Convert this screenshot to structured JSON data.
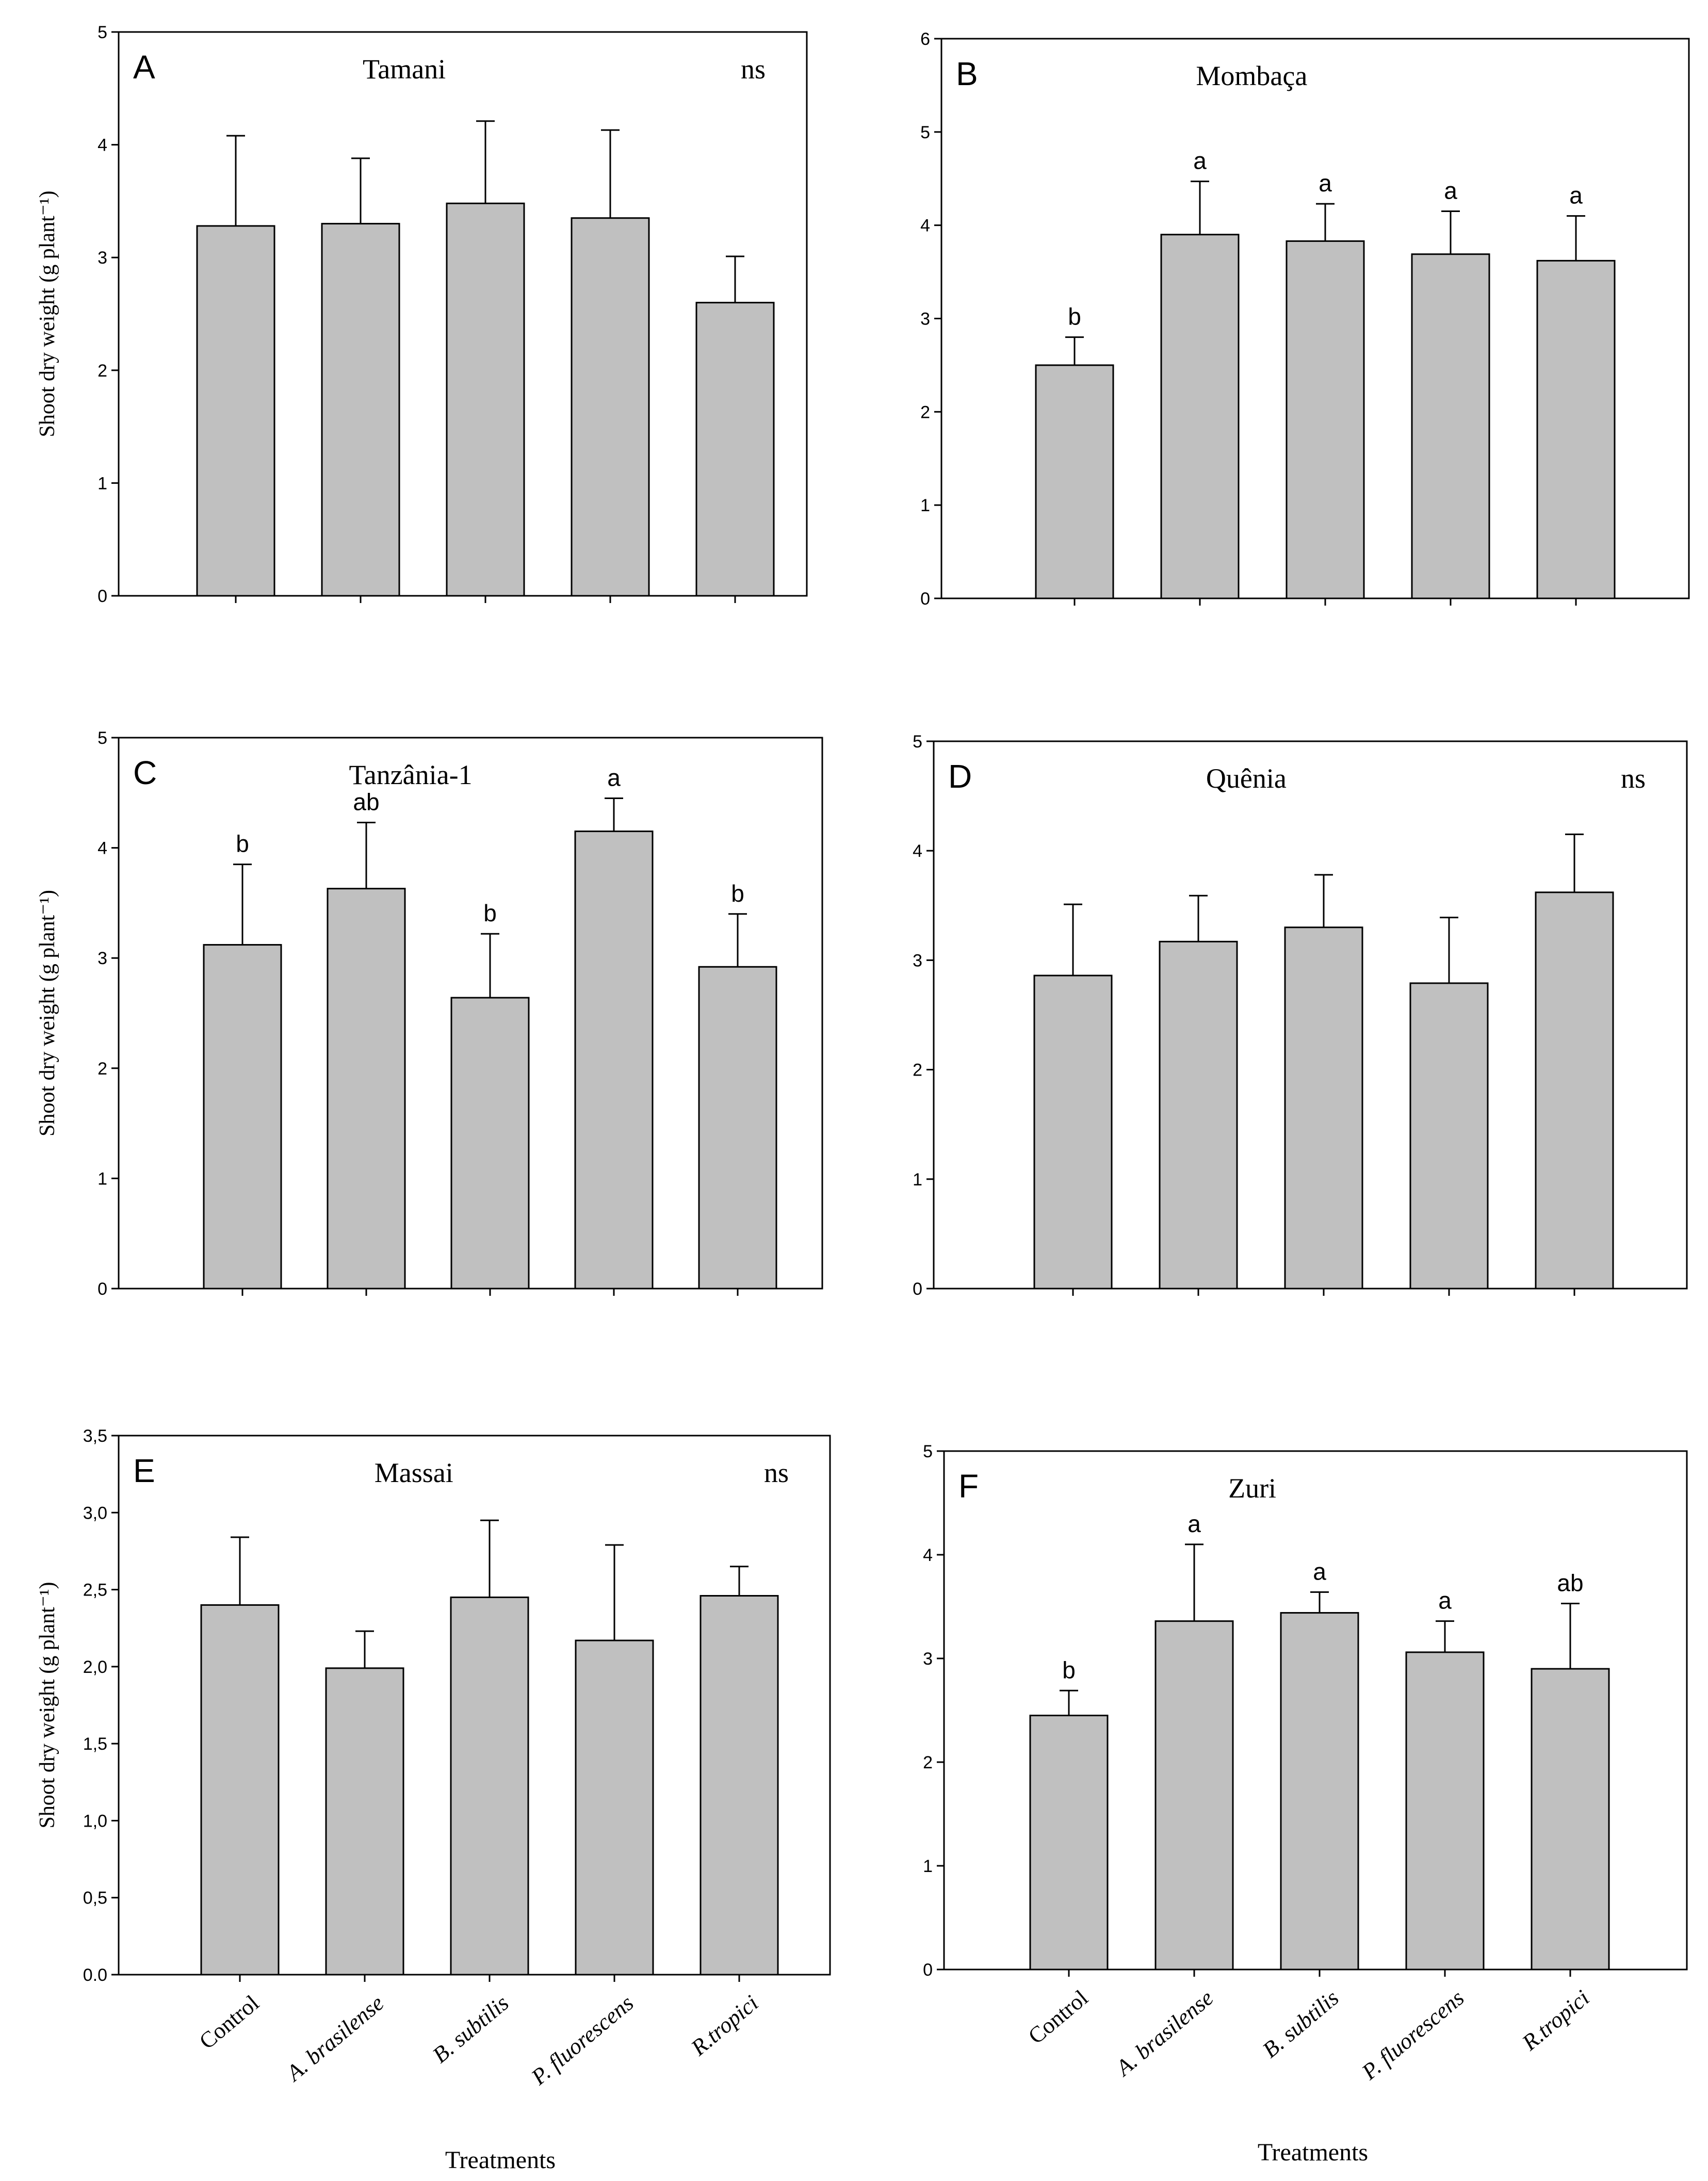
{
  "figure": {
    "xlabel_left": "Treatments",
    "xlabel_right": "Treatments"
  },
  "colors": {
    "bar_fill": "#c0c0c0",
    "stroke": "#000000",
    "background": "#ffffff"
  },
  "chart_data": [
    {
      "type": "bar",
      "panel": "A",
      "title": "Tamani",
      "note": "ns",
      "ylabel": "Shoot dry weight (g plant⁻¹)",
      "xlabel": "",
      "ylim": [
        0,
        5
      ],
      "yticks": [
        "0",
        "1",
        "2",
        "3",
        "4",
        "5"
      ],
      "categories": [
        "Control",
        "A. brasilense",
        "B. subtilis",
        "P. fluorescens",
        "R.tropici"
      ],
      "values": [
        3.28,
        3.3,
        3.48,
        3.35,
        2.6
      ],
      "errors": [
        0.8,
        0.58,
        0.73,
        0.78,
        0.41
      ],
      "letters": [
        "",
        "",
        "",
        "",
        ""
      ]
    },
    {
      "type": "bar",
      "panel": "B",
      "title": "Mombaça",
      "note": "",
      "ylabel": "",
      "xlabel": "",
      "ylim": [
        0,
        6
      ],
      "yticks": [
        "0",
        "1",
        "2",
        "3",
        "4",
        "5",
        "6"
      ],
      "categories": [
        "Control",
        "A. brasilense",
        "B. subtilis",
        "P. fluorescens",
        "R.tropici"
      ],
      "values": [
        2.5,
        3.9,
        3.83,
        3.69,
        3.62
      ],
      "errors": [
        0.3,
        0.57,
        0.4,
        0.46,
        0.48
      ],
      "letters": [
        "b",
        "a",
        "a",
        "a",
        "a"
      ]
    },
    {
      "type": "bar",
      "panel": "C",
      "title": "Tanzânia-1",
      "note": "",
      "ylabel": "Shoot dry weight (g plant⁻¹)",
      "xlabel": "",
      "ylim": [
        0,
        5
      ],
      "yticks": [
        "0",
        "1",
        "2",
        "3",
        "4",
        "5"
      ],
      "categories": [
        "Control",
        "A. brasilense",
        "B. subtilis",
        "P. fluorescens",
        "R.tropici"
      ],
      "values": [
        3.12,
        3.63,
        2.64,
        4.15,
        2.92
      ],
      "errors": [
        0.73,
        0.6,
        0.58,
        0.3,
        0.48
      ],
      "letters": [
        "b",
        "ab",
        "b",
        "a",
        "b"
      ]
    },
    {
      "type": "bar",
      "panel": "D",
      "title": "Quênia",
      "note": "ns",
      "ylabel": "",
      "xlabel": "",
      "ylim": [
        0,
        5
      ],
      "yticks": [
        "0",
        "1",
        "2",
        "3",
        "4",
        "5"
      ],
      "categories": [
        "Control",
        "A. brasilense",
        "B. subtilis",
        "P. fluorescens",
        "R.tropici"
      ],
      "values": [
        2.86,
        3.17,
        3.3,
        2.79,
        3.62
      ],
      "errors": [
        0.65,
        0.42,
        0.48,
        0.6,
        0.53
      ],
      "letters": [
        "",
        "",
        "",
        "",
        ""
      ]
    },
    {
      "type": "bar",
      "panel": "E",
      "title": "Massai",
      "note": "ns",
      "ylabel": "Shoot dry weight (g plant⁻¹)",
      "xlabel": "",
      "ylim": [
        0,
        3.5
      ],
      "yticks": [
        "0.0",
        "0,5",
        "1,0",
        "1,5",
        "2,0",
        "2,5",
        "3,0",
        "3,5"
      ],
      "categories": [
        "Control",
        "A. brasilense",
        "B. subtilis",
        "P. fluorescens",
        "R.tropici"
      ],
      "values": [
        2.4,
        1.99,
        2.45,
        2.17,
        2.46
      ],
      "errors": [
        0.44,
        0.24,
        0.5,
        0.62,
        0.19
      ],
      "letters": [
        "",
        "",
        "",
        "",
        ""
      ]
    },
    {
      "type": "bar",
      "panel": "F",
      "title": "Zuri",
      "note": "",
      "ylabel": "",
      "xlabel": "",
      "ylim": [
        0,
        5
      ],
      "yticks": [
        "0",
        "1",
        "2",
        "3",
        "4",
        "5"
      ],
      "categories": [
        "Control",
        "A. brasilense",
        "B. subtilis",
        "P. fluorescens",
        "R.tropici"
      ],
      "values": [
        2.45,
        3.36,
        3.44,
        3.06,
        2.9
      ],
      "errors": [
        0.24,
        0.74,
        0.2,
        0.3,
        0.63
      ],
      "letters": [
        "b",
        "a",
        "a",
        "a",
        "ab"
      ]
    }
  ]
}
